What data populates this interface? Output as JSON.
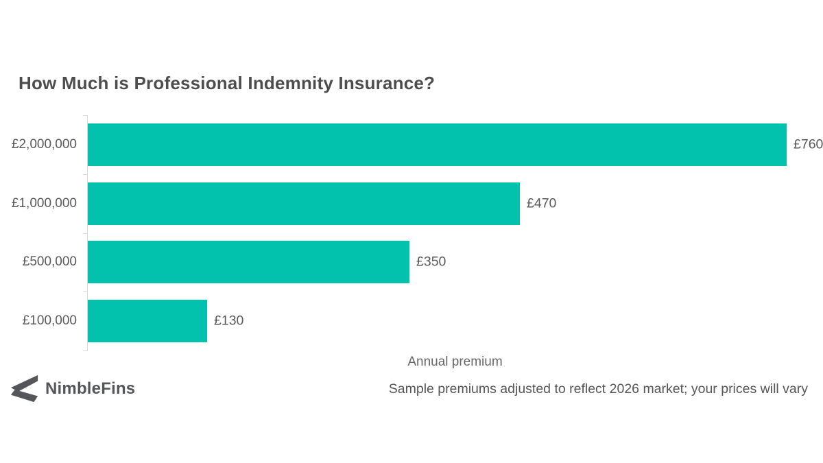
{
  "title": "How Much is Professional Indemnity Insurance?",
  "chart_data": {
    "type": "bar",
    "orientation": "horizontal",
    "title": "How Much is Professional Indemnity Insurance?",
    "categories": [
      "£2,000,000",
      "£1,000,000",
      "£500,000",
      "£100,000"
    ],
    "values": [
      760,
      470,
      350,
      130
    ],
    "value_labels": [
      "£760",
      "£470",
      "£350",
      "£130"
    ],
    "xlabel": "Annual premium",
    "ylabel": "",
    "xlim": [
      0,
      800
    ],
    "grid": false,
    "legend": "none",
    "bar_color": "#02c2ae",
    "axis_color": "#d8d8d8",
    "label_color": "#595959"
  },
  "footer": {
    "brand": "NimbleFins",
    "note": "Sample premiums adjusted to reflect 2026 market; your prices will vary"
  }
}
